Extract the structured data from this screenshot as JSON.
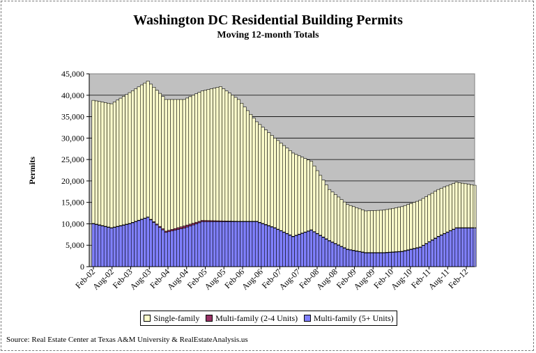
{
  "chart_data": {
    "type": "area",
    "title": "Washington DC Residential Building Permits",
    "subtitle": "Moving 12-month Totals",
    "ylabel": "Permits",
    "xlabel": "",
    "ylim": [
      0,
      45000
    ],
    "yticks": [
      "0",
      "5,000",
      "10,000",
      "15,000",
      "20,000",
      "25,000",
      "30,000",
      "35,000",
      "40,000",
      "45,000"
    ],
    "xtick_labels": [
      "Feb-02",
      "Aug-02",
      "Feb-03",
      "Aug-03",
      "Feb-04",
      "Aug-04",
      "Feb-05",
      "Aug-05",
      "Feb-06",
      "Aug-06",
      "Feb-07",
      "Aug-07",
      "Feb-08",
      "Aug-08",
      "Feb-09",
      "Aug-09",
      "Feb-10",
      "Aug-10",
      "Feb-11",
      "Aug-11",
      "Feb-12"
    ],
    "stacked": true,
    "grid": "horizontal",
    "legend_position": "bottom",
    "x_anchor_months": [
      "Feb-02",
      "Aug-02",
      "Feb-03",
      "Aug-03",
      "Feb-04",
      "Aug-04",
      "Feb-05",
      "Aug-05",
      "Feb-06",
      "Aug-06",
      "Feb-07",
      "Aug-07",
      "Feb-08",
      "Aug-08",
      "Feb-09",
      "Aug-09",
      "Feb-10",
      "Aug-10",
      "Feb-11",
      "Aug-11",
      "Feb-12",
      "Mar-12"
    ],
    "series": [
      {
        "name": "Multi-family (5+ Units)",
        "color": "#8080ff",
        "values": [
          10000,
          9000,
          10000,
          11500,
          8000,
          9000,
          10500,
          10500,
          10500,
          10500,
          9000,
          7000,
          8500,
          6000,
          4000,
          3200,
          3200,
          3500,
          4500,
          7000,
          9000,
          9000
        ]
      },
      {
        "name": "Multi-family (2-4 Units)",
        "color": "#993366",
        "values": [
          100,
          100,
          100,
          100,
          300,
          500,
          300,
          200,
          100,
          100,
          100,
          100,
          100,
          100,
          100,
          100,
          100,
          100,
          100,
          100,
          100,
          100
        ]
      },
      {
        "name": "Single-family",
        "color": "#ffffcc",
        "values": [
          28700,
          28900,
          30500,
          31700,
          30700,
          29500,
          30200,
          31300,
          28400,
          23200,
          20900,
          19400,
          16000,
          11900,
          10400,
          9700,
          9900,
          10400,
          10900,
          10900,
          10600,
          9900
        ]
      }
    ]
  },
  "legend": {
    "single_family": "Single-family",
    "multi_2_4": "Multi-family (2-4 Units)",
    "multi_5plus": "Multi-family (5+ Units)"
  },
  "source": "Source: Real Estate Center at Texas A&M University & RealEstateAnalysis.us",
  "colors": {
    "plot_background": "#c0c0c0",
    "single_family": "#ffffcc",
    "multi_2_4": "#993366",
    "multi_5plus": "#8080ff"
  }
}
